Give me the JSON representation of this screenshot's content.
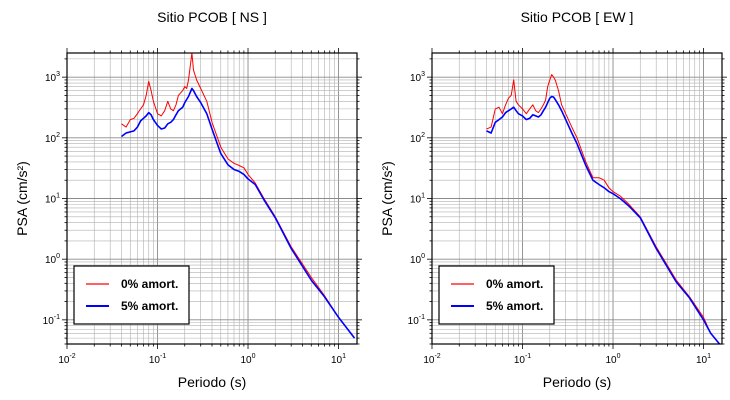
{
  "chart_data": [
    {
      "type": "line",
      "title": "Sitio PCOB [ NS ]",
      "xlabel": "Periodo (s)",
      "ylabel": "PSA (cm/s²)",
      "xscale": "log",
      "yscale": "log",
      "xlim": [
        0.01,
        16
      ],
      "ylim": [
        0.04,
        2500
      ],
      "xtick_labels": [
        {
          "value": 0.01,
          "base": "10",
          "exp": "-2"
        },
        {
          "value": 0.1,
          "base": "10",
          "exp": "-1"
        },
        {
          "value": 1,
          "base": "10",
          "exp": "0"
        },
        {
          "value": 10,
          "base": "10",
          "exp": "1"
        }
      ],
      "ytick_labels": [
        {
          "value": 0.1,
          "base": "10",
          "exp": "-1"
        },
        {
          "value": 1,
          "base": "10",
          "exp": "0"
        },
        {
          "value": 10,
          "base": "10",
          "exp": "1"
        },
        {
          "value": 100,
          "base": "10",
          "exp": "2"
        },
        {
          "value": 1000,
          "base": "10",
          "exp": "3"
        }
      ],
      "grid": true,
      "legend_position": "bottom-left",
      "series": [
        {
          "name": "0% amort.",
          "color": "#ff0000",
          "x": [
            0.04,
            0.045,
            0.05,
            0.055,
            0.06,
            0.065,
            0.07,
            0.075,
            0.08,
            0.085,
            0.09,
            0.1,
            0.11,
            0.12,
            0.13,
            0.14,
            0.15,
            0.16,
            0.17,
            0.18,
            0.19,
            0.2,
            0.21,
            0.22,
            0.23,
            0.24,
            0.25,
            0.27,
            0.3,
            0.35,
            0.4,
            0.5,
            0.6,
            0.7,
            0.8,
            0.9,
            1.0,
            1.2,
            1.5,
            2,
            3,
            5,
            7,
            10,
            15
          ],
          "y": [
            170,
            150,
            200,
            210,
            250,
            300,
            350,
            500,
            850,
            600,
            400,
            250,
            230,
            280,
            400,
            300,
            280,
            350,
            500,
            550,
            600,
            700,
            650,
            900,
            1500,
            2500,
            1300,
            900,
            650,
            400,
            180,
            70,
            45,
            38,
            35,
            32,
            25,
            18,
            10,
            5,
            1.6,
            0.5,
            0.25,
            0.11,
            0.05
          ]
        },
        {
          "name": "5% amort.",
          "color": "#0000ff",
          "x": [
            0.04,
            0.045,
            0.05,
            0.055,
            0.06,
            0.065,
            0.07,
            0.075,
            0.08,
            0.085,
            0.09,
            0.1,
            0.11,
            0.12,
            0.13,
            0.14,
            0.15,
            0.16,
            0.17,
            0.18,
            0.19,
            0.2,
            0.21,
            0.22,
            0.23,
            0.24,
            0.25,
            0.27,
            0.3,
            0.35,
            0.4,
            0.5,
            0.6,
            0.7,
            0.8,
            0.9,
            1.0,
            1.2,
            1.5,
            2,
            3,
            5,
            7,
            10,
            15
          ],
          "y": [
            105,
            120,
            125,
            130,
            150,
            190,
            210,
            230,
            260,
            240,
            200,
            160,
            140,
            145,
            170,
            180,
            200,
            240,
            280,
            300,
            320,
            380,
            430,
            480,
            560,
            650,
            600,
            480,
            380,
            250,
            140,
            55,
            36,
            30,
            28,
            25,
            21,
            17,
            9.5,
            4.8,
            1.5,
            0.45,
            0.24,
            0.11,
            0.05
          ]
        }
      ]
    },
    {
      "type": "line",
      "title": "Sitio PCOB [ EW ]",
      "xlabel": "Periodo (s)",
      "ylabel": "PSA (cm/s²)",
      "xscale": "log",
      "yscale": "log",
      "xlim": [
        0.01,
        16
      ],
      "ylim": [
        0.04,
        2500
      ],
      "xtick_labels": [
        {
          "value": 0.01,
          "base": "10",
          "exp": "-2"
        },
        {
          "value": 0.1,
          "base": "10",
          "exp": "-1"
        },
        {
          "value": 1,
          "base": "10",
          "exp": "0"
        },
        {
          "value": 10,
          "base": "10",
          "exp": "1"
        }
      ],
      "ytick_labels": [
        {
          "value": 0.1,
          "base": "10",
          "exp": "-1"
        },
        {
          "value": 1,
          "base": "10",
          "exp": "0"
        },
        {
          "value": 10,
          "base": "10",
          "exp": "1"
        },
        {
          "value": 100,
          "base": "10",
          "exp": "2"
        },
        {
          "value": 1000,
          "base": "10",
          "exp": "3"
        }
      ],
      "grid": true,
      "legend_position": "bottom-left",
      "series": [
        {
          "name": "0% amort.",
          "color": "#ff0000",
          "x": [
            0.04,
            0.045,
            0.05,
            0.055,
            0.06,
            0.065,
            0.07,
            0.075,
            0.08,
            0.085,
            0.09,
            0.1,
            0.11,
            0.12,
            0.13,
            0.14,
            0.15,
            0.16,
            0.17,
            0.18,
            0.19,
            0.2,
            0.21,
            0.22,
            0.23,
            0.25,
            0.27,
            0.3,
            0.35,
            0.4,
            0.5,
            0.6,
            0.7,
            0.8,
            0.9,
            1.0,
            1.2,
            1.5,
            2,
            3,
            5,
            7,
            10,
            12,
            15
          ],
          "y": [
            140,
            150,
            300,
            320,
            250,
            350,
            450,
            500,
            900,
            400,
            350,
            300,
            250,
            300,
            350,
            280,
            260,
            300,
            350,
            420,
            700,
            900,
            1100,
            1000,
            900,
            600,
            350,
            250,
            150,
            100,
            40,
            22,
            22,
            20,
            15,
            13,
            11,
            8,
            5,
            1.6,
            0.45,
            0.24,
            0.11,
            0.06,
            0.04
          ]
        },
        {
          "name": "5% amort.",
          "color": "#0000ff",
          "x": [
            0.04,
            0.045,
            0.05,
            0.055,
            0.06,
            0.065,
            0.07,
            0.075,
            0.08,
            0.085,
            0.09,
            0.1,
            0.11,
            0.12,
            0.13,
            0.14,
            0.15,
            0.16,
            0.17,
            0.18,
            0.19,
            0.2,
            0.21,
            0.22,
            0.23,
            0.25,
            0.27,
            0.3,
            0.35,
            0.4,
            0.5,
            0.6,
            0.7,
            0.8,
            0.9,
            1.0,
            1.2,
            1.5,
            2,
            3,
            5,
            7,
            10,
            12,
            15
          ],
          "y": [
            130,
            120,
            180,
            200,
            220,
            260,
            280,
            300,
            320,
            280,
            250,
            230,
            200,
            210,
            240,
            230,
            220,
            240,
            280,
            320,
            380,
            450,
            480,
            470,
            430,
            350,
            280,
            200,
            120,
            80,
            35,
            20,
            17,
            15,
            13,
            12,
            10,
            7.5,
            4.8,
            1.5,
            0.42,
            0.23,
            0.1,
            0.06,
            0.04
          ]
        }
      ]
    }
  ]
}
